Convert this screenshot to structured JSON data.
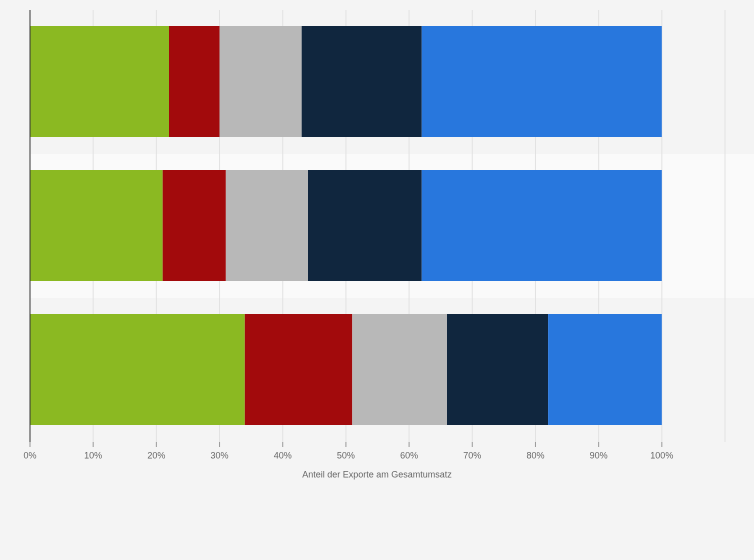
{
  "chart_data": {
    "type": "stacked-bar-horizontal",
    "categories": [
      null,
      null,
      null
    ],
    "series": [
      {
        "color": "#8bb922",
        "values": [
          22,
          21,
          34
        ]
      },
      {
        "color": "#a20a0c",
        "values": [
          8,
          10,
          17
        ]
      },
      {
        "color": "#b8b8b8",
        "values": [
          13,
          13,
          15
        ]
      },
      {
        "color": "#10263e",
        "values": [
          19,
          18,
          16
        ]
      },
      {
        "color": "#2877dd",
        "values": [
          38,
          38,
          18
        ]
      }
    ],
    "xlim": [
      0,
      110
    ],
    "xticks": [
      {
        "value": 0,
        "label": "0%"
      },
      {
        "value": 10,
        "label": "10%"
      },
      {
        "value": 20,
        "label": "20%"
      },
      {
        "value": 30,
        "label": "30%"
      },
      {
        "value": 40,
        "label": "40%"
      },
      {
        "value": 50,
        "label": "50%"
      },
      {
        "value": 60,
        "label": "60%"
      },
      {
        "value": 70,
        "label": "70%"
      },
      {
        "value": 80,
        "label": "80%"
      },
      {
        "value": 90,
        "label": "90%"
      },
      {
        "value": 100,
        "label": "100%"
      }
    ],
    "xlabel": "Anteil der Exporte am Gesamtumsatz",
    "grid": true
  }
}
